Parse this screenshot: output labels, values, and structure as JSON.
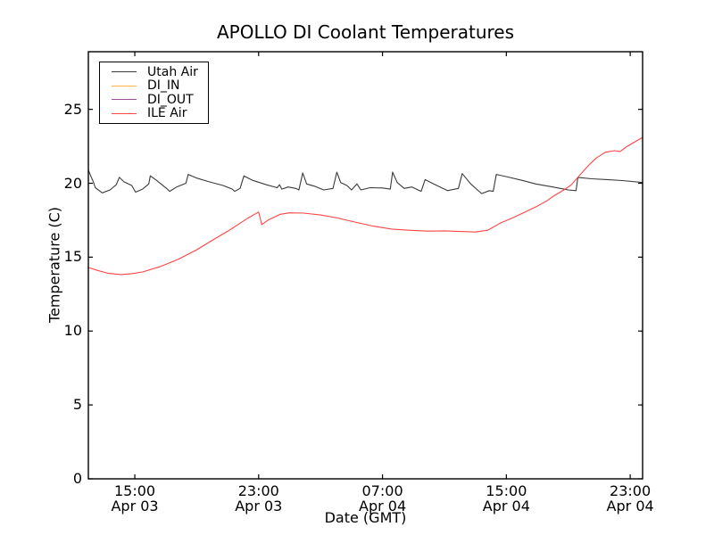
{
  "chart_data": {
    "type": "line",
    "title": "APOLLO DI Coolant Temperatures",
    "xlabel": "Date (GMT)",
    "ylabel": "Temperature (C)",
    "x_unit": "hours since Apr 03 12:00 GMT",
    "xlim": [
      0,
      35.8
    ],
    "ylim": [
      0,
      28.9
    ],
    "grid": false,
    "legend_position": "upper left",
    "axes_color": "#000000",
    "background": "#ffffff",
    "y_ticks": [
      0,
      5,
      10,
      15,
      20,
      25
    ],
    "x_ticks": [
      {
        "t": 3,
        "time": "15:00",
        "date": "Apr 03"
      },
      {
        "t": 11,
        "time": "23:00",
        "date": "Apr 03"
      },
      {
        "t": 19,
        "time": "07:00",
        "date": "Apr 04"
      },
      {
        "t": 27,
        "time": "15:00",
        "date": "Apr 04"
      },
      {
        "t": 35,
        "time": "23:00",
        "date": "Apr 04"
      }
    ],
    "series": [
      {
        "name": "Utah Air",
        "color": "#3b3b3b",
        "points": [
          [
            0,
            20.9
          ],
          [
            0.15,
            20.5
          ],
          [
            0.3,
            20.15
          ],
          [
            0.45,
            19.7
          ],
          [
            0.9,
            19.35
          ],
          [
            1.4,
            19.55
          ],
          [
            1.8,
            19.9
          ],
          [
            2.0,
            20.4
          ],
          [
            2.3,
            20.1
          ],
          [
            2.8,
            19.85
          ],
          [
            3.05,
            19.4
          ],
          [
            3.5,
            19.6
          ],
          [
            3.9,
            19.95
          ],
          [
            4.0,
            20.5
          ],
          [
            4.4,
            20.2
          ],
          [
            5.1,
            19.6
          ],
          [
            5.25,
            19.45
          ],
          [
            5.7,
            19.75
          ],
          [
            6.3,
            20.0
          ],
          [
            6.45,
            20.6
          ],
          [
            7.0,
            20.35
          ],
          [
            7.8,
            20.1
          ],
          [
            8.7,
            19.85
          ],
          [
            9.3,
            19.6
          ],
          [
            9.45,
            19.45
          ],
          [
            9.8,
            19.65
          ],
          [
            10.05,
            20.5
          ],
          [
            10.6,
            20.2
          ],
          [
            11.5,
            19.9
          ],
          [
            12.2,
            19.7
          ],
          [
            12.35,
            19.9
          ],
          [
            12.5,
            19.6
          ],
          [
            12.9,
            19.75
          ],
          [
            13.4,
            19.65
          ],
          [
            13.6,
            19.55
          ],
          [
            13.85,
            20.7
          ],
          [
            14.1,
            19.95
          ],
          [
            14.6,
            19.8
          ],
          [
            15.2,
            19.55
          ],
          [
            15.8,
            19.65
          ],
          [
            16.05,
            20.75
          ],
          [
            16.3,
            20.05
          ],
          [
            16.7,
            19.85
          ],
          [
            17.0,
            19.55
          ],
          [
            17.35,
            19.95
          ],
          [
            17.6,
            19.55
          ],
          [
            18.2,
            19.7
          ],
          [
            19.0,
            19.68
          ],
          [
            19.5,
            19.6
          ],
          [
            19.65,
            20.75
          ],
          [
            19.95,
            20.05
          ],
          [
            20.4,
            19.65
          ],
          [
            20.9,
            19.75
          ],
          [
            21.5,
            19.45
          ],
          [
            21.75,
            20.25
          ],
          [
            22.3,
            19.95
          ],
          [
            23.2,
            19.5
          ],
          [
            23.9,
            19.65
          ],
          [
            24.15,
            20.65
          ],
          [
            24.7,
            19.95
          ],
          [
            25.4,
            19.3
          ],
          [
            25.9,
            19.5
          ],
          [
            26.15,
            19.45
          ],
          [
            26.35,
            20.6
          ],
          [
            27.0,
            20.45
          ],
          [
            28.0,
            20.2
          ],
          [
            28.9,
            19.95
          ],
          [
            30.0,
            19.75
          ],
          [
            31.0,
            19.55
          ],
          [
            31.5,
            19.5
          ],
          [
            31.62,
            20.4
          ],
          [
            32.5,
            20.3
          ],
          [
            33.5,
            20.25
          ],
          [
            34.5,
            20.18
          ],
          [
            35.8,
            20.05
          ]
        ]
      },
      {
        "name": "DI_IN",
        "color": "#ffb347",
        "points": []
      },
      {
        "name": "DI_OUT",
        "color": "#9b4f9b",
        "points": []
      },
      {
        "name": "ILE Air",
        "color": "#ff4444",
        "points": [
          [
            0,
            14.3
          ],
          [
            0.6,
            14.1
          ],
          [
            1.3,
            13.9
          ],
          [
            2.1,
            13.82
          ],
          [
            2.8,
            13.88
          ],
          [
            3.5,
            14.0
          ],
          [
            4.6,
            14.35
          ],
          [
            5.8,
            14.85
          ],
          [
            7.0,
            15.5
          ],
          [
            8.1,
            16.2
          ],
          [
            9.0,
            16.75
          ],
          [
            9.8,
            17.3
          ],
          [
            10.4,
            17.7
          ],
          [
            11.0,
            18.05
          ],
          [
            11.2,
            17.2
          ],
          [
            11.6,
            17.5
          ],
          [
            12.4,
            17.9
          ],
          [
            13.0,
            18.0
          ],
          [
            13.9,
            17.98
          ],
          [
            15.0,
            17.85
          ],
          [
            16.1,
            17.65
          ],
          [
            17.3,
            17.35
          ],
          [
            18.4,
            17.1
          ],
          [
            19.6,
            16.9
          ],
          [
            20.7,
            16.82
          ],
          [
            21.9,
            16.76
          ],
          [
            23.0,
            16.78
          ],
          [
            24.2,
            16.73
          ],
          [
            25.0,
            16.7
          ],
          [
            25.8,
            16.82
          ],
          [
            26.6,
            17.3
          ],
          [
            27.5,
            17.7
          ],
          [
            28.3,
            18.1
          ],
          [
            29.0,
            18.45
          ],
          [
            29.6,
            18.8
          ],
          [
            30.0,
            19.1
          ],
          [
            30.8,
            19.6
          ],
          [
            31.2,
            19.9
          ],
          [
            31.7,
            20.5
          ],
          [
            32.3,
            21.2
          ],
          [
            32.8,
            21.7
          ],
          [
            33.4,
            22.1
          ],
          [
            34.0,
            22.2
          ],
          [
            34.35,
            22.15
          ],
          [
            34.8,
            22.5
          ],
          [
            35.3,
            22.8
          ],
          [
            35.8,
            23.1
          ]
        ]
      }
    ]
  }
}
